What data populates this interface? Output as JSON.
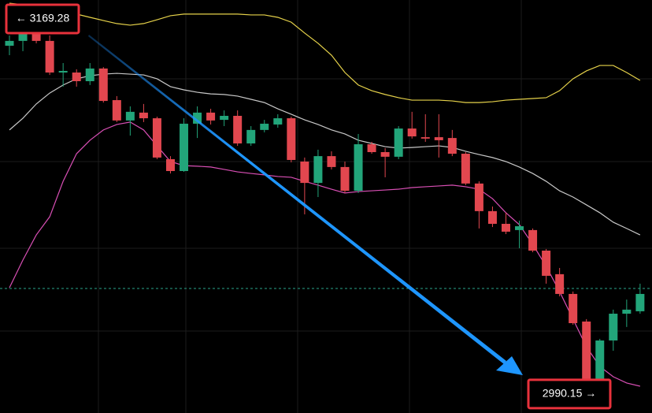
{
  "chart_data": {
    "type": "candlestick",
    "categories": [
      null,
      null,
      null,
      null,
      null,
      null,
      null,
      null,
      null,
      null,
      null,
      null,
      null,
      null,
      null,
      null,
      null,
      null,
      null,
      null,
      null,
      null,
      null,
      null,
      null,
      null,
      null,
      null,
      null,
      null,
      null,
      null,
      null,
      null,
      null,
      null,
      null,
      null,
      null,
      null,
      null,
      null,
      null,
      null,
      null,
      null,
      null,
      null
    ],
    "open": [
      3158.3,
      3160.7,
      3166.1,
      3160.7,
      3145.0,
      3145.0,
      3140.7,
      3147.0,
      3131.3,
      3121.2,
      3125.1,
      3122.3,
      3102.0,
      3096.1,
      3119.6,
      3125.1,
      3121.5,
      3123.5,
      3109.8,
      3116.5,
      3119.2,
      3122.3,
      3100.8,
      3090.2,
      3103.5,
      3098.1,
      3086.3,
      3109.4,
      3105.5,
      3103.2,
      3117.2,
      3112.9,
      3112.9,
      3112.5,
      3104.7,
      3089.9,
      3076.2,
      3069.9,
      3066.8,
      3066.8,
      3056.6,
      3044.9,
      3035.1,
      3021.4,
      2991.3,
      3012.0,
      3025.3,
      3026.5
    ],
    "high": [
      3163.4,
      3167.3,
      3169.28,
      3163.4,
      3149.7,
      3146.6,
      3149.7,
      3147.7,
      3133.3,
      3128.2,
      3129.4,
      3123.1,
      3103.5,
      3122.3,
      3128.2,
      3127.0,
      3126.2,
      3126.2,
      3118.4,
      3121.5,
      3124.3,
      3123.1,
      3102.8,
      3106.7,
      3105.9,
      3100.8,
      3114.5,
      3110.6,
      3107.5,
      3118.4,
      3125.5,
      3124.3,
      3124.3,
      3116.5,
      3105.5,
      3091.0,
      3078.5,
      3075.4,
      3071.5,
      3067.6,
      3057.4,
      3048.0,
      3036.3,
      3022.6,
      3012.8,
      3027.3,
      3032.3,
      3040.2
    ],
    "low": [
      3153.6,
      3155.6,
      3159.5,
      3143.8,
      3138.0,
      3138.0,
      3138.8,
      3130.1,
      3120.4,
      3113.7,
      3120.4,
      3102.0,
      3094.9,
      3095.7,
      3112.5,
      3119.2,
      3118.4,
      3108.6,
      3108.6,
      3115.3,
      3117.6,
      3100.4,
      3074.6,
      3083.2,
      3096.9,
      3085.2,
      3085.2,
      3104.7,
      3093.0,
      3102.0,
      3112.2,
      3110.6,
      3102.8,
      3103.5,
      3089.1,
      3067.6,
      3068.3,
      3064.8,
      3057.8,
      3055.8,
      3040.2,
      3033.9,
      3019.8,
      2990.15,
      2990.9,
      3006.9,
      3018.7,
      3025.3
    ],
    "close": [
      3160.7,
      3164.6,
      3160.7,
      3145.0,
      3145.8,
      3140.7,
      3147.0,
      3130.9,
      3121.2,
      3125.5,
      3122.3,
      3102.8,
      3096.1,
      3119.6,
      3125.1,
      3121.2,
      3123.5,
      3109.8,
      3116.5,
      3119.6,
      3122.3,
      3101.6,
      3090.2,
      3103.5,
      3098.1,
      3086.3,
      3109.4,
      3105.5,
      3103.2,
      3117.2,
      3113.3,
      3112.2,
      3111.4,
      3104.7,
      3089.9,
      3076.2,
      3069.9,
      3066.0,
      3068.7,
      3056.6,
      3044.1,
      3035.1,
      3020.6,
      2991.3,
      3012.0,
      3025.3,
      3027.3,
      3035.1
    ],
    "up_color": "#22a57a",
    "down_color": "#e2474f",
    "series": [
      {
        "color": "#e6d24a",
        "values": [
          3179.4,
          3178.7,
          3177.5,
          3176.3,
          3175.1,
          3174.0,
          3172.4,
          3170.8,
          3169.3,
          3168.5,
          3169.3,
          3171.2,
          3173.2,
          3174.0,
          3174.0,
          3174.0,
          3174.0,
          3174.0,
          3173.6,
          3173.6,
          3172.4,
          3170.0,
          3164.6,
          3159.5,
          3153.6,
          3145.0,
          3138.8,
          3136.0,
          3134.1,
          3132.5,
          3131.3,
          3131.3,
          3131.3,
          3130.9,
          3130.1,
          3130.1,
          3130.5,
          3131.3,
          3131.7,
          3132.1,
          3132.5,
          3136.0,
          3141.9,
          3145.8,
          3148.5,
          3148.5,
          3145.0,
          3141.1
        ]
      },
      {
        "color": "#c8c8c8",
        "values": [
          3116.5,
          3122.3,
          3129.4,
          3134.8,
          3138.8,
          3141.9,
          3143.4,
          3144.2,
          3144.6,
          3144.2,
          3143.8,
          3141.9,
          3138.0,
          3136.4,
          3135.2,
          3134.4,
          3134.1,
          3133.3,
          3131.7,
          3130.1,
          3127.0,
          3124.3,
          3121.5,
          3119.2,
          3116.5,
          3114.5,
          3111.4,
          3109.8,
          3108.2,
          3107.5,
          3107.8,
          3108.2,
          3108.6,
          3107.8,
          3105.9,
          3104.3,
          3102.8,
          3100.8,
          3098.1,
          3094.9,
          3091.0,
          3086.3,
          3083.2,
          3079.3,
          3075.4,
          3070.7,
          3067.6,
          3064.4
        ]
      },
      {
        "color": "#d94fb5",
        "values": [
          3038.2,
          3051.9,
          3064.4,
          3073.4,
          3091.0,
          3104.7,
          3111.4,
          3116.5,
          3119.2,
          3120.4,
          3116.5,
          3108.6,
          3100.8,
          3098.8,
          3098.5,
          3098.1,
          3096.9,
          3095.7,
          3094.9,
          3094.2,
          3093.4,
          3093.0,
          3091.0,
          3089.1,
          3087.1,
          3085.2,
          3085.9,
          3086.3,
          3086.7,
          3087.1,
          3087.9,
          3088.3,
          3088.7,
          3089.1,
          3088.3,
          3087.1,
          3082.4,
          3075.4,
          3069.5,
          3059.7,
          3048.8,
          3036.3,
          3022.6,
          3008.9,
          2999.1,
          2994.0,
          2990.9,
          2989.3
        ]
      }
    ],
    "current_price": 3037.8,
    "current_price_color": "#2aa58a",
    "ylim": [
      2976,
      3181
    ],
    "annotations": [
      {
        "text": "← 3169.28",
        "value": 3169.28
      },
      {
        "text": "2990.15 →",
        "value": 2990.15
      }
    ]
  }
}
